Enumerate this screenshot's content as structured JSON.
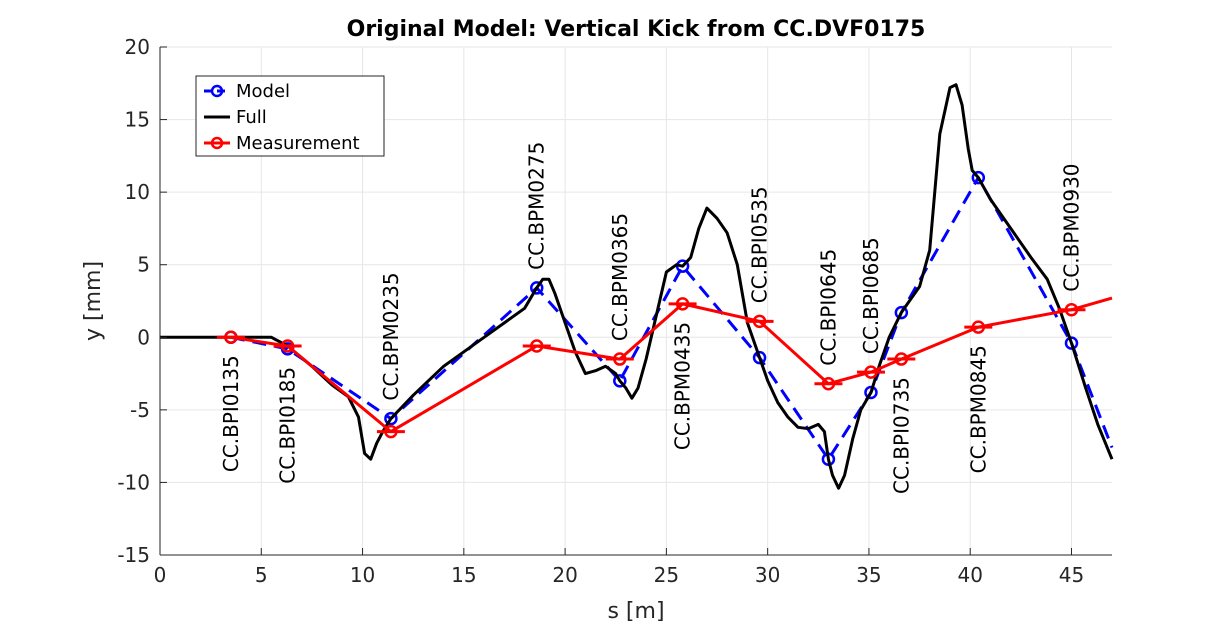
{
  "chart_data": {
    "type": "line",
    "title": "Original Model: Vertical Kick from CC.DVF0175",
    "xlabel": "s [m]",
    "ylabel": "y [mm]",
    "xlim": [
      0,
      47
    ],
    "ylim": [
      -15,
      20
    ],
    "xticks": [
      0,
      5,
      10,
      15,
      20,
      25,
      30,
      35,
      40,
      45
    ],
    "yticks": [
      -15,
      -10,
      -5,
      0,
      5,
      10,
      15,
      20
    ],
    "grid": true,
    "legend_position": "top-left",
    "series": [
      {
        "name": "Model",
        "color": "#0000ff",
        "style": "dashed-circle",
        "x": [
          3.5,
          6.3,
          11.4,
          18.6,
          22.7,
          25.8,
          29.6,
          33.0,
          35.1,
          36.6,
          40.4,
          45.0,
          47.0
        ],
        "y": [
          0,
          -0.8,
          -5.6,
          3.4,
          -3.0,
          4.9,
          -1.4,
          -8.4,
          -3.8,
          1.7,
          11.0,
          -0.4,
          -7.6
        ]
      },
      {
        "name": "Full",
        "color": "#000000",
        "style": "solid",
        "x": [
          0,
          3.5,
          5.5,
          6.3,
          7.5,
          8.5,
          9.3,
          9.8,
          10.1,
          10.4,
          10.7,
          11.0,
          11.4,
          12.5,
          14.0,
          16.0,
          18.0,
          18.6,
          18.9,
          19.2,
          19.5,
          20.0,
          20.5,
          21.0,
          21.5,
          22.0,
          22.5,
          22.7,
          23.0,
          23.3,
          23.6,
          24.0,
          24.5,
          25.0,
          25.5,
          25.8,
          26.2,
          26.6,
          27.0,
          27.5,
          28.0,
          28.5,
          29.0,
          29.6,
          30.0,
          30.5,
          31.0,
          31.5,
          32.0,
          32.5,
          32.8,
          33.0,
          33.2,
          33.5,
          33.8,
          34.2,
          34.6,
          35.1,
          35.5,
          36.0,
          36.6,
          37.0,
          37.5,
          38.0,
          38.5,
          39.0,
          39.3,
          39.6,
          39.9,
          40.1,
          40.4,
          41.0,
          42.0,
          43.0,
          43.8,
          44.4,
          45.0,
          45.7,
          46.3,
          47.0
        ],
        "y": [
          0,
          0,
          0,
          -0.6,
          -2.0,
          -3.3,
          -4.1,
          -5.5,
          -8.0,
          -8.4,
          -7.3,
          -6.5,
          -5.6,
          -4.0,
          -2.0,
          0,
          2.0,
          3.4,
          4.0,
          4.0,
          3.0,
          1.0,
          -1.0,
          -2.5,
          -2.3,
          -2.0,
          -2.5,
          -3.0,
          -3.5,
          -4.2,
          -3.5,
          -1.5,
          1.5,
          4.5,
          5.0,
          4.9,
          5.5,
          7.5,
          8.9,
          8.2,
          7.2,
          5.0,
          1.0,
          -1.4,
          -3.0,
          -4.5,
          -5.5,
          -6.2,
          -6.3,
          -6.0,
          -6.5,
          -8.4,
          -9.5,
          -10.4,
          -9.5,
          -7.0,
          -5.0,
          -3.8,
          -2.0,
          0,
          1.7,
          2.5,
          3.5,
          6.0,
          14.0,
          17.2,
          17.4,
          16.0,
          13.0,
          11.5,
          11.0,
          9.5,
          7.5,
          5.5,
          4.0,
          2.0,
          -0.4,
          -3.5,
          -6.0,
          -8.4
        ]
      },
      {
        "name": "Measurement",
        "color": "#ff0000",
        "style": "solid-circle",
        "x": [
          3.5,
          6.3,
          11.4,
          18.6,
          22.7,
          25.8,
          29.6,
          33.0,
          35.1,
          36.6,
          40.4,
          45.0,
          47.0
        ],
        "y": [
          0,
          -0.6,
          -6.5,
          -0.6,
          -1.5,
          2.3,
          1.1,
          -3.2,
          -2.4,
          -1.5,
          0.7,
          1.9,
          2.7
        ]
      }
    ],
    "annotations": [
      {
        "text": "CC.BPI0135",
        "x": 3.5,
        "side": "below"
      },
      {
        "text": "CC.BPI0185",
        "x": 6.3,
        "side": "below"
      },
      {
        "text": "CC.BPM0235",
        "x": 11.4,
        "side": "above"
      },
      {
        "text": "CC.BPM0275",
        "x": 18.6,
        "side": "above"
      },
      {
        "text": "CC.BPM0365",
        "x": 22.7,
        "side": "above"
      },
      {
        "text": "CC.BPM0435",
        "x": 25.8,
        "side": "below"
      },
      {
        "text": "CC.BPI0535",
        "x": 29.6,
        "side": "above"
      },
      {
        "text": "CC.BPI0645",
        "x": 33.0,
        "side": "above"
      },
      {
        "text": "CC.BPI0685",
        "x": 35.1,
        "side": "above"
      },
      {
        "text": "CC.BPI0735",
        "x": 36.6,
        "side": "below"
      },
      {
        "text": "CC.BPM0845",
        "x": 40.4,
        "side": "below"
      },
      {
        "text": "CC.BPM0930",
        "x": 45.0,
        "side": "above"
      }
    ]
  }
}
